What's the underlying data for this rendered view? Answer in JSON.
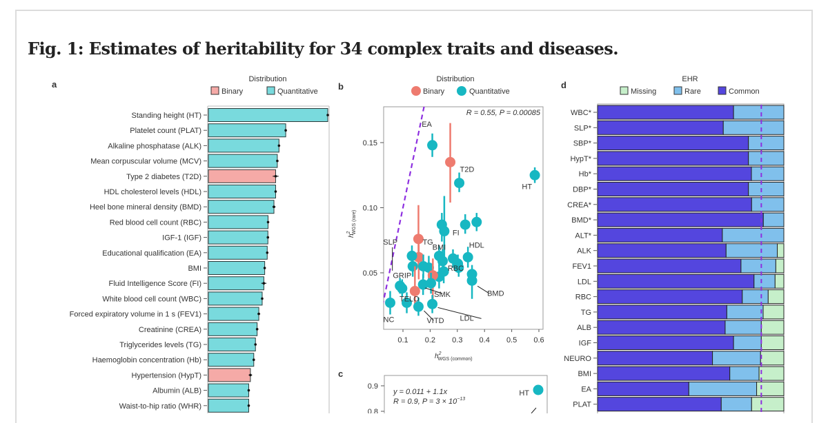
{
  "figure": {
    "title": "Fig. 1: Estimates of heritability for 34 complex traits and diseases."
  },
  "colors": {
    "bar_quantitative": "#79dadd",
    "bar_binary": "#f5aaa7",
    "point_quantitative": "#17b7c2",
    "point_binary": "#ee7b6f",
    "common": "#5446de",
    "rare": "#80c0ec",
    "missing": "#c6efca",
    "reference_line": "#8d2fe0"
  },
  "chart_data": [
    {
      "panel": "a",
      "type": "bar",
      "orientation": "horizontal",
      "legend": {
        "title": "Distribution",
        "entries": [
          "Binary",
          "Quantitative"
        ],
        "placement": "top"
      },
      "categories": [
        "Standing height (HT)",
        "Platelet count (PLAT)",
        "Alkaline phosphatase (ALK)",
        "Mean corpuscular volume (MCV)",
        "Type 2 diabetes (T2D)",
        "HDL cholesterol levels (HDL)",
        "Heel bone mineral density (BMD)",
        "Red blood cell count (RBC)",
        "IGF-1 (IGF)",
        "Educational qualification (EA)",
        "BMI",
        "Fluid Intelligence Score (FI)",
        "White blood cell count (WBC)",
        "Forced expiratory volume in 1 s (FEV1)",
        "Creatinine (CREA)",
        "Triglycerides levels (TG)",
        "Haemoglobin concentration (Hb)",
        "Hypertension (HypT)",
        "Albumin (ALB)",
        "Waist-to-hip ratio (WHR)"
      ],
      "distribution": [
        "Quantitative",
        "Quantitative",
        "Quantitative",
        "Quantitative",
        "Binary",
        "Quantitative",
        "Quantitative",
        "Quantitative",
        "Quantitative",
        "Quantitative",
        "Quantitative",
        "Quantitative",
        "Quantitative",
        "Quantitative",
        "Quantitative",
        "Quantitative",
        "Quantitative",
        "Binary",
        "Quantitative",
        "Quantitative"
      ],
      "values": [
        0.71,
        0.46,
        0.42,
        0.41,
        0.4,
        0.4,
        0.39,
        0.355,
        0.354,
        0.35,
        0.335,
        0.33,
        0.32,
        0.3,
        0.29,
        0.28,
        0.27,
        0.25,
        0.24,
        0.24
      ],
      "errors": [
        0.004,
        0.006,
        0.005,
        0.005,
        0.017,
        0.006,
        0.009,
        0.005,
        0.005,
        0.006,
        0.006,
        0.015,
        0.006,
        0.008,
        0.007,
        0.006,
        0.007,
        0.01,
        0.005,
        0.005
      ],
      "grid": false
    },
    {
      "panel": "b",
      "type": "scatter",
      "legend": {
        "title": "Distribution",
        "entries": [
          "Binary",
          "Quantitative"
        ],
        "placement": "top"
      },
      "xlabel": "h²WGS (common)",
      "ylabel": "h²WGS (rare)",
      "xlabel_main": "h",
      "xlabel_sup": "2",
      "xlabel_sub": "WGS (common)",
      "ylabel_main": "h",
      "ylabel_sup": "2",
      "ylabel_sub": "WGS (rare)",
      "xlim": [
        0.03,
        0.615
      ],
      "ylim": [
        0.007,
        0.177
      ],
      "xticks": [
        "0.1",
        "0.2",
        "0.3",
        "0.4",
        "0.5",
        "0.6"
      ],
      "yticks": [
        "0.05",
        "0.10",
        "0.15"
      ],
      "annotation": "R = 0.55, P = 0.00085",
      "points": [
        {
          "x": 0.208,
          "y": 0.148,
          "lo": 0.139,
          "hi": 0.157,
          "type": "Quantitative",
          "label": "EA"
        },
        {
          "x": 0.274,
          "y": 0.135,
          "lo": 0.104,
          "hi": 0.165,
          "type": "Binary",
          "label": "T2D"
        },
        {
          "x": 0.307,
          "y": 0.119,
          "lo": 0.112,
          "hi": 0.127,
          "type": "Quantitative",
          "label": ""
        },
        {
          "x": 0.585,
          "y": 0.125,
          "lo": 0.119,
          "hi": 0.131,
          "type": "Quantitative",
          "label": "HT"
        },
        {
          "x": 0.243,
          "y": 0.087,
          "lo": 0.074,
          "hi": 0.096,
          "type": "Quantitative",
          "label": ""
        },
        {
          "x": 0.252,
          "y": 0.082,
          "lo": 0.06,
          "hi": 0.109,
          "type": "Quantitative",
          "label": "FI"
        },
        {
          "x": 0.329,
          "y": 0.087,
          "lo": 0.08,
          "hi": 0.095,
          "type": "Quantitative",
          "label": ""
        },
        {
          "x": 0.371,
          "y": 0.089,
          "lo": 0.082,
          "hi": 0.096,
          "type": "Quantitative",
          "label": "HDL"
        },
        {
          "x": 0.157,
          "y": 0.076,
          "lo": 0.055,
          "hi": 0.102,
          "type": "Binary",
          "label": "TG"
        },
        {
          "x": 0.158,
          "y": 0.062,
          "lo": 0.045,
          "hi": 0.078,
          "type": "Binary",
          "label": ""
        },
        {
          "x": 0.133,
          "y": 0.063,
          "lo": 0.056,
          "hi": 0.071,
          "type": "Quantitative",
          "label": ""
        },
        {
          "x": 0.136,
          "y": 0.055,
          "lo": 0.047,
          "hi": 0.063,
          "type": "Quantitative",
          "label": ""
        },
        {
          "x": 0.175,
          "y": 0.055,
          "lo": 0.046,
          "hi": 0.064,
          "type": "Quantitative",
          "label": ""
        },
        {
          "x": 0.195,
          "y": 0.054,
          "lo": 0.045,
          "hi": 0.063,
          "type": "Quantitative",
          "label": ""
        },
        {
          "x": 0.233,
          "y": 0.063,
          "lo": 0.055,
          "hi": 0.071,
          "type": "Quantitative",
          "label": "BMI"
        },
        {
          "x": 0.246,
          "y": 0.059,
          "lo": 0.05,
          "hi": 0.068,
          "type": "Quantitative",
          "label": ""
        },
        {
          "x": 0.25,
          "y": 0.051,
          "lo": 0.042,
          "hi": 0.06,
          "type": "Quantitative",
          "label": ""
        },
        {
          "x": 0.233,
          "y": 0.047,
          "lo": 0.038,
          "hi": 0.056,
          "type": "Quantitative",
          "label": ""
        },
        {
          "x": 0.284,
          "y": 0.061,
          "lo": 0.054,
          "hi": 0.068,
          "type": "Quantitative",
          "label": ""
        },
        {
          "x": 0.302,
          "y": 0.057,
          "lo": 0.05,
          "hi": 0.064,
          "type": "Quantitative",
          "label": ""
        },
        {
          "x": 0.305,
          "y": 0.054,
          "lo": 0.047,
          "hi": 0.061,
          "type": "Quantitative",
          "label": ""
        },
        {
          "x": 0.339,
          "y": 0.062,
          "lo": 0.054,
          "hi": 0.07,
          "type": "Quantitative",
          "label": ""
        },
        {
          "x": 0.354,
          "y": 0.049,
          "lo": 0.042,
          "hi": 0.056,
          "type": "Quantitative",
          "label": "RBC"
        },
        {
          "x": 0.354,
          "y": 0.044,
          "lo": 0.03,
          "hi": 0.052,
          "type": "Quantitative",
          "label": "BMD"
        },
        {
          "x": 0.21,
          "y": 0.048,
          "lo": 0.03,
          "hi": 0.061,
          "type": "Binary",
          "label": ""
        },
        {
          "x": 0.144,
          "y": 0.036,
          "lo": 0.026,
          "hi": 0.055,
          "type": "Binary",
          "label": "TELO"
        },
        {
          "x": 0.089,
          "y": 0.04,
          "lo": 0.034,
          "hi": 0.046,
          "type": "Quantitative",
          "label": "SLP"
        },
        {
          "x": 0.097,
          "y": 0.038,
          "lo": 0.032,
          "hi": 0.045,
          "type": "Quantitative",
          "label": "GRIP"
        },
        {
          "x": 0.174,
          "y": 0.041,
          "lo": 0.033,
          "hi": 0.049,
          "type": "Quantitative",
          "label": "SMK"
        },
        {
          "x": 0.203,
          "y": 0.042,
          "lo": 0.034,
          "hi": 0.05,
          "type": "Quantitative",
          "label": ""
        },
        {
          "x": 0.053,
          "y": 0.027,
          "lo": 0.018,
          "hi": 0.036,
          "type": "Quantitative",
          "label": "NC"
        },
        {
          "x": 0.114,
          "y": 0.027,
          "lo": 0.019,
          "hi": 0.035,
          "type": "Quantitative",
          "label": ""
        },
        {
          "x": 0.157,
          "y": 0.024,
          "lo": 0.017,
          "hi": 0.031,
          "type": "Quantitative",
          "label": "VITD"
        },
        {
          "x": 0.208,
          "y": 0.026,
          "lo": 0.019,
          "hi": 0.033,
          "type": "Quantitative",
          "label": "LDL"
        }
      ],
      "grid": false
    },
    {
      "panel": "c",
      "type": "scatter",
      "yticks": [
        "0.9",
        "0.8"
      ],
      "annotation_line1": "y = 0.011 + 1.1x",
      "annotation_line2_main": "R = 0.9, P = 3 × 10",
      "annotation_line2_sup": "−13",
      "points": [
        {
          "label": "HT",
          "type": "Quantitative"
        }
      ],
      "grid": false
    },
    {
      "panel": "d",
      "type": "bar",
      "stacked": true,
      "orientation": "horizontal",
      "legend": {
        "title": "EHR",
        "entries": [
          "Missing",
          "Rare",
          "Common"
        ],
        "placement": "top"
      },
      "categories": [
        "WBC*",
        "SLP*",
        "SBP*",
        "HypT*",
        "Hb*",
        "DBP*",
        "CREA*",
        "BMD*",
        "ALT*",
        "ALK",
        "FEV1",
        "LDL",
        "RBC",
        "TG",
        "ALB",
        "IGF",
        "NEURO",
        "BMI",
        "EA",
        "PLAT"
      ],
      "series": [
        {
          "name": "Common",
          "values": [
            0.73,
            0.675,
            0.81,
            0.81,
            0.826,
            0.81,
            0.827,
            0.89,
            0.67,
            0.69,
            0.77,
            0.84,
            0.777,
            0.694,
            0.685,
            0.73,
            0.617,
            0.71,
            0.49,
            0.664
          ]
        },
        {
          "name": "Rare",
          "values": [
            0.27,
            0.325,
            0.19,
            0.19,
            0.174,
            0.19,
            0.173,
            0.11,
            0.33,
            0.275,
            0.187,
            0.113,
            0.139,
            0.195,
            0.194,
            0.149,
            0.258,
            0.157,
            0.364,
            0.163
          ]
        },
        {
          "name": "Missing",
          "values": [
            0,
            0,
            0,
            0,
            0,
            0,
            0,
            0,
            0,
            0.035,
            0.043,
            0.047,
            0.084,
            0.111,
            0.121,
            0.121,
            0.125,
            0.133,
            0.146,
            0.173
          ]
        }
      ],
      "reference_fraction": 0.879,
      "xlim": [
        0,
        1
      ],
      "grid": false
    }
  ]
}
